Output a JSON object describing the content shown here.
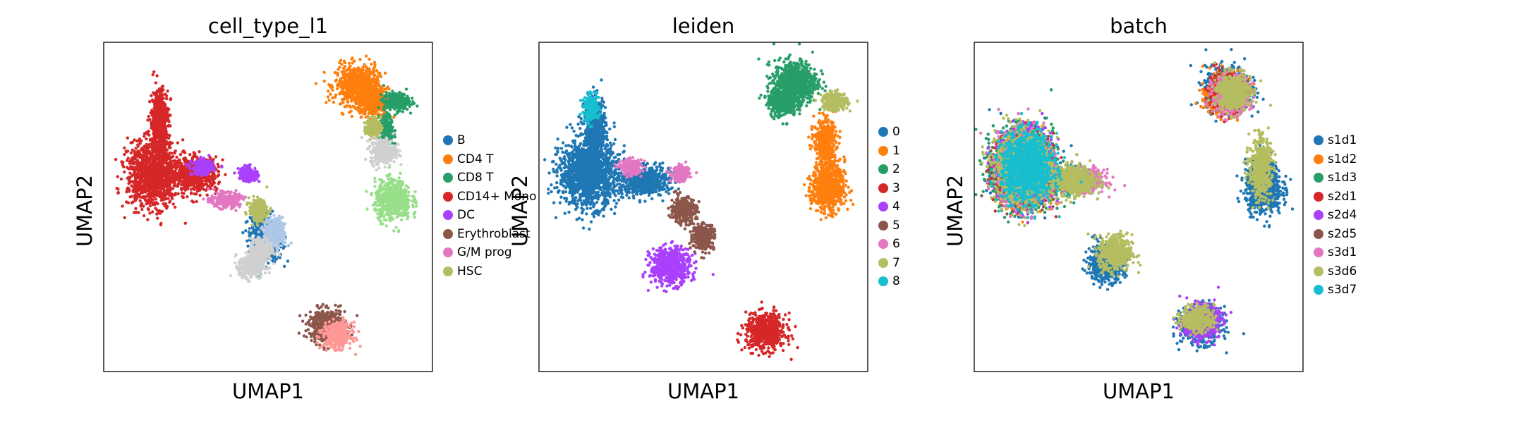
{
  "chart_data": [
    {
      "type": "scatter",
      "title": "cell_type_l1",
      "xlabel": "UMAP1",
      "ylabel": "UMAP2",
      "grid": false,
      "ticks": false,
      "xlim": [
        0,
        10
      ],
      "ylim": [
        0,
        10
      ],
      "legend_position": "right",
      "series": [
        {
          "name": "B",
          "color": "#1f77b4",
          "clusters": [
            [
              5.0,
              3.9,
              0.4,
              0.5
            ],
            [
              4.8,
              4.2,
              0.3,
              0.6
            ]
          ]
        },
        {
          "name": "CD4 T",
          "color": "#ff7f0e",
          "clusters": [
            [
              7.7,
              8.7,
              0.6,
              0.55
            ],
            [
              8.2,
              8.2,
              0.4,
              0.4
            ]
          ]
        },
        {
          "name": "CD8 T",
          "color": "#279e68",
          "clusters": [
            [
              8.9,
              8.2,
              0.35,
              0.25
            ],
            [
              8.6,
              7.3,
              0.2,
              0.4
            ]
          ]
        },
        {
          "name": "CD14+ Mono",
          "color": "#d62728",
          "clusters": [
            [
              1.5,
              6.0,
              0.7,
              0.9
            ],
            [
              1.7,
              7.6,
              0.25,
              0.9
            ],
            [
              2.8,
              6.0,
              0.6,
              0.45
            ]
          ]
        },
        {
          "name": "DC",
          "color": "#aa40fc",
          "clusters": [
            [
              3.0,
              6.2,
              0.3,
              0.2
            ],
            [
              4.4,
              6.0,
              0.25,
              0.2
            ]
          ]
        },
        {
          "name": "Erythroblast",
          "color": "#8c564b",
          "clusters": [
            [
              6.8,
              1.4,
              0.5,
              0.45
            ]
          ]
        },
        {
          "name": "G/M prog",
          "color": "#e377c2",
          "clusters": [
            [
              3.7,
              5.2,
              0.4,
              0.2
            ]
          ]
        },
        {
          "name": "HSC",
          "color": "#b5bd61",
          "clusters": [
            [
              4.7,
              4.9,
              0.25,
              0.3
            ],
            [
              8.2,
              7.4,
              0.2,
              0.25
            ]
          ]
        },
        {
          "name": "",
          "color": "#aec7e8",
          "clusters": [
            [
              5.2,
              4.2,
              0.3,
              0.4
            ]
          ]
        },
        {
          "name": "",
          "color": "#d0d0d0",
          "clusters": [
            [
              4.5,
              3.2,
              0.35,
              0.35
            ],
            [
              8.5,
              6.7,
              0.35,
              0.35
            ],
            [
              4.8,
              3.7,
              0.3,
              0.3
            ]
          ]
        },
        {
          "name": "",
          "color": "#98df8a",
          "clusters": [
            [
              8.8,
              5.2,
              0.5,
              0.55
            ]
          ]
        },
        {
          "name": "",
          "color": "#ff9896",
          "clusters": [
            [
              7.1,
              1.1,
              0.4,
              0.35
            ]
          ]
        }
      ]
    },
    {
      "type": "scatter",
      "title": "leiden",
      "xlabel": "UMAP1",
      "ylabel": "UMAP2",
      "grid": false,
      "ticks": false,
      "xlim": [
        0,
        10
      ],
      "ylim": [
        0,
        10
      ],
      "legend_position": "right",
      "series": [
        {
          "name": "0",
          "color": "#1f77b4",
          "clusters": [
            [
              1.5,
              6.0,
              0.8,
              0.9
            ],
            [
              1.7,
              7.4,
              0.3,
              0.8
            ],
            [
              3.2,
              5.8,
              0.7,
              0.4
            ]
          ]
        },
        {
          "name": "1",
          "color": "#ff7f0e",
          "clusters": [
            [
              8.7,
              7.0,
              0.3,
              0.6
            ],
            [
              8.8,
              5.6,
              0.45,
              0.7
            ]
          ]
        },
        {
          "name": "2",
          "color": "#279e68",
          "clusters": [
            [
              7.8,
              8.8,
              0.6,
              0.6
            ],
            [
              7.4,
              8.2,
              0.4,
              0.4
            ]
          ]
        },
        {
          "name": "3",
          "color": "#d62728",
          "clusters": [
            [
              6.9,
              1.2,
              0.55,
              0.5
            ]
          ]
        },
        {
          "name": "4",
          "color": "#aa40fc",
          "clusters": [
            [
              4.0,
              3.2,
              0.55,
              0.5
            ]
          ]
        },
        {
          "name": "5",
          "color": "#8c564b",
          "clusters": [
            [
              4.4,
              4.9,
              0.35,
              0.35
            ],
            [
              5.0,
              4.1,
              0.3,
              0.35
            ]
          ]
        },
        {
          "name": "6",
          "color": "#e377c2",
          "clusters": [
            [
              2.8,
              6.2,
              0.3,
              0.2
            ],
            [
              4.3,
              6.0,
              0.25,
              0.2
            ]
          ]
        },
        {
          "name": "7",
          "color": "#b5bd61",
          "clusters": [
            [
              9.0,
              8.2,
              0.35,
              0.25
            ]
          ]
        },
        {
          "name": "8",
          "color": "#17becf",
          "clusters": [
            [
              1.6,
              8.0,
              0.2,
              0.35
            ]
          ]
        }
      ]
    },
    {
      "type": "scatter",
      "title": "batch",
      "xlabel": "UMAP1",
      "ylabel": "UMAP2",
      "grid": false,
      "ticks": false,
      "xlim": [
        0,
        10
      ],
      "ylim": [
        0,
        10
      ],
      "legend_position": "right",
      "series": [
        {
          "name": "s1d1",
          "color": "#1f77b4",
          "clusters": [
            [
              1.5,
              6.2,
              0.8,
              1.0
            ],
            [
              7.7,
              8.6,
              0.6,
              0.6
            ],
            [
              8.8,
              5.6,
              0.5,
              0.7
            ],
            [
              6.9,
              1.4,
              0.55,
              0.5
            ],
            [
              4.0,
              3.3,
              0.5,
              0.5
            ]
          ]
        },
        {
          "name": "s1d2",
          "color": "#ff7f0e",
          "clusters": [
            [
              1.6,
              6.0,
              0.7,
              0.8
            ],
            [
              7.6,
              8.4,
              0.5,
              0.5
            ]
          ]
        },
        {
          "name": "s1d3",
          "color": "#279e68",
          "clusters": [
            [
              1.5,
              6.2,
              0.8,
              1.0
            ],
            [
              3.0,
              5.8,
              0.6,
              0.4
            ]
          ]
        },
        {
          "name": "s2d1",
          "color": "#d62728",
          "clusters": [
            [
              1.5,
              6.2,
              0.7,
              0.9
            ],
            [
              7.7,
              8.5,
              0.5,
              0.5
            ]
          ]
        },
        {
          "name": "s2d4",
          "color": "#aa40fc",
          "clusters": [
            [
              1.6,
              6.2,
              0.7,
              0.9
            ],
            [
              6.9,
              1.5,
              0.5,
              0.45
            ]
          ]
        },
        {
          "name": "s2d5",
          "color": "#8c564b",
          "clusters": [
            [
              1.5,
              6.0,
              0.7,
              0.8
            ]
          ]
        },
        {
          "name": "s3d1",
          "color": "#e377c2",
          "clusters": [
            [
              1.5,
              6.2,
              0.7,
              0.9
            ],
            [
              3.4,
              5.8,
              0.5,
              0.3
            ],
            [
              7.8,
              8.4,
              0.5,
              0.5
            ]
          ]
        },
        {
          "name": "s3d6",
          "color": "#b5bd61",
          "clusters": [
            [
              1.5,
              6.2,
              0.75,
              0.95
            ],
            [
              7.9,
              8.5,
              0.45,
              0.5
            ],
            [
              8.7,
              6.2,
              0.3,
              0.8
            ],
            [
              6.8,
              1.6,
              0.45,
              0.35
            ],
            [
              4.3,
              3.6,
              0.45,
              0.5
            ],
            [
              3.0,
              5.8,
              0.6,
              0.4
            ]
          ]
        },
        {
          "name": "s3d7",
          "color": "#17becf",
          "clusters": [
            [
              1.6,
              6.2,
              0.7,
              0.9
            ]
          ]
        }
      ]
    }
  ]
}
